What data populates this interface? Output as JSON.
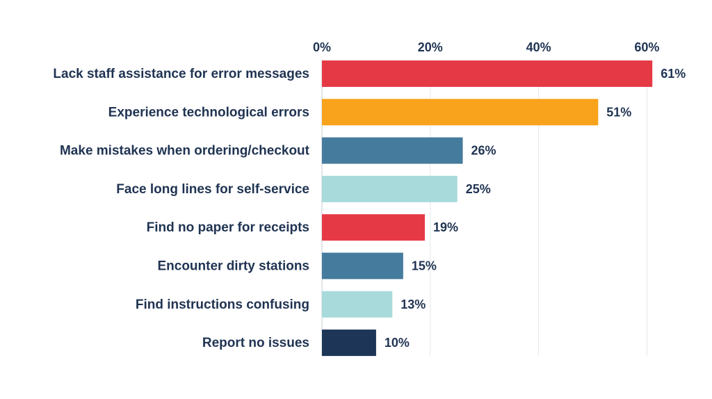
{
  "chart_data": {
    "type": "bar",
    "orientation": "horizontal",
    "title": "",
    "xlabel": "",
    "ylabel": "",
    "xlim": [
      0,
      60
    ],
    "x_ticks": [
      0,
      20,
      40,
      60
    ],
    "x_tick_labels": [
      "0%",
      "20%",
      "40%",
      "60%"
    ],
    "x_axis_position": "top",
    "grid": true,
    "legend": "none",
    "categories": [
      "Lack staff assistance for error messages",
      "Experience technological errors",
      "Make mistakes when ordering/checkout",
      "Face long lines for self-service",
      "Find no paper for receipts",
      "Encounter dirty stations",
      "Find instructions confusing",
      "Report no issues"
    ],
    "values": [
      61,
      51,
      26,
      25,
      19,
      15,
      13,
      10
    ],
    "value_labels": [
      "61%",
      "51%",
      "26%",
      "25%",
      "19%",
      "15%",
      "13%",
      "10%"
    ],
    "bar_colors": [
      "#e63946",
      "#f9a21b",
      "#457b9d",
      "#a8dadc",
      "#e63946",
      "#457b9d",
      "#a8dadc",
      "#1d3557"
    ]
  }
}
